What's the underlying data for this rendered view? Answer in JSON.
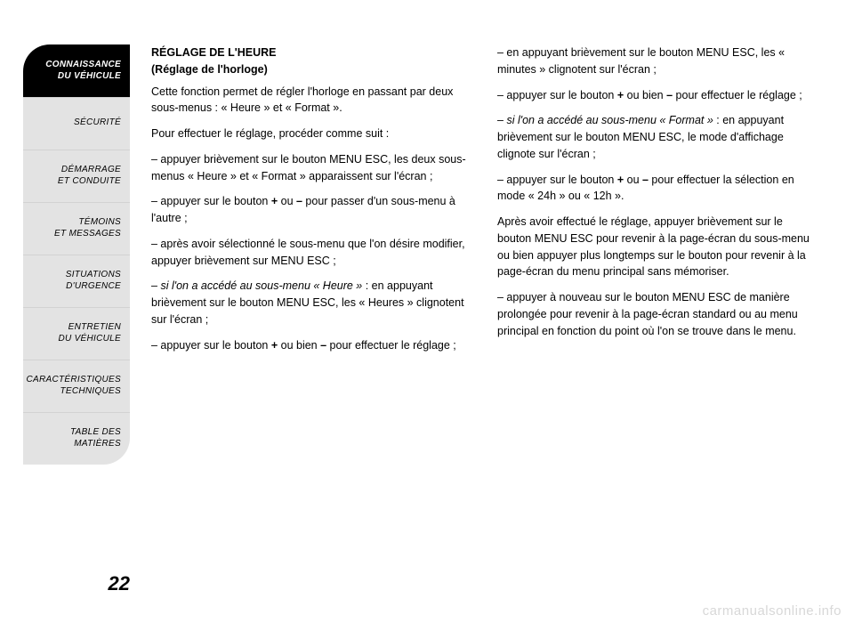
{
  "sidebar": {
    "tabs": [
      {
        "label": "CONNAISSANCE\nDU VÉHICULE",
        "active": true
      },
      {
        "label": "SÉCURITÉ",
        "active": false
      },
      {
        "label": "DÉMARRAGE\nET CONDUITE",
        "active": false
      },
      {
        "label": "TÉMOINS\nET MESSAGES",
        "active": false
      },
      {
        "label": "SITUATIONS\nD'URGENCE",
        "active": false
      },
      {
        "label": "ENTRETIEN\nDU VÉHICULE",
        "active": false
      },
      {
        "label": "CARACTÉRISTIQUES\nTECHNIQUES",
        "active": false
      },
      {
        "label": "TABLE  DES\nMATIÈRES",
        "active": false
      }
    ]
  },
  "page_number": "22",
  "content": {
    "heading_line1": "RÉGLAGE DE L'HEURE",
    "heading_line2": "(Réglage de l'horloge)",
    "col1": {
      "p1": "Cette fonction permet de régler l'horloge en passant par deux sous-menus : « Heure » et « Format ».",
      "p2": "Pour effectuer le réglage, procéder comme suit :",
      "p3": "– appuyer brièvement sur le bouton MENU ESC, les deux sous-menus « Heure » et « Format » apparaissent sur l'écran ;",
      "p4_pre": "– appuyer sur le bouton ",
      "p4_b1": "+",
      "p4_mid": " ou ",
      "p4_b2": "–",
      "p4_post": " pour passer d'un sous-menu à l'autre ;",
      "p5": "– après avoir sélectionné le sous-menu que l'on désire modifier, appuyer brièvement sur MENU ESC ;",
      "p6_pre": "– ",
      "p6_i": "si l'on a accédé au sous-menu « Heure »",
      "p6_post": " : en appuyant brièvement sur le bouton MENU ESC, les « Heures » clignotent sur l'écran ;",
      "p7_pre": "– appuyer sur le bouton ",
      "p7_b1": "+",
      "p7_mid": " ou bien ",
      "p7_b2": "–",
      "p7_post": " pour effectuer le réglage ;"
    },
    "col2": {
      "p1": "– en appuyant brièvement sur le bouton MENU ESC, les « minutes » clignotent sur l'écran ;",
      "p2_pre": "– appuyer sur le bouton ",
      "p2_b1": "+",
      "p2_mid": " ou bien ",
      "p2_b2": "–",
      "p2_post": " pour effectuer le réglage ;",
      "p3_pre": "– ",
      "p3_i": "si l'on a accédé au sous-menu « Format »",
      "p3_post": " : en appuyant brièvement sur le bouton MENU ESC, le mode d'affichage clignote sur l'écran ;",
      "p4_pre": "– appuyer sur le bouton ",
      "p4_b1": "+",
      "p4_mid": " ou ",
      "p4_b2": "–",
      "p4_post": " pour effectuer la sélection en mode « 24h » ou « 12h ».",
      "p5": "Après avoir effectué le réglage, appuyer brièvement sur le bouton MENU ESC pour revenir à la page-écran du sous-menu ou bien appuyer plus longtemps sur le bouton pour revenir à la page-écran du menu principal sans mémoriser.",
      "p6": "– appuyer à nouveau sur le bouton MENU ESC de manière prolongée pour revenir à la page-écran standard ou au menu principal en fonction du point où l'on se trouve dans le menu."
    }
  },
  "watermark": "carmanualsonline.info",
  "colors": {
    "page_bg": "#ffffff",
    "tab_active_bg": "#000000",
    "tab_active_fg": "#ffffff",
    "tab_inactive_bg": "#e3e3e3",
    "tab_inactive_fg": "#000000",
    "text": "#000000",
    "watermark": "#d8d8d8"
  }
}
